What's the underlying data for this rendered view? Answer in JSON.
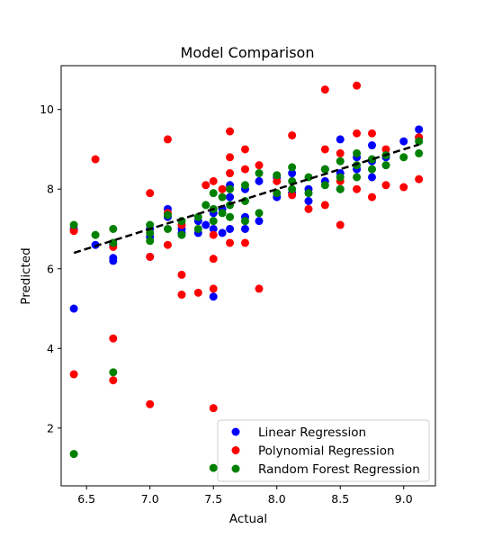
{
  "chart_data": {
    "type": "scatter",
    "title": "Model Comparison",
    "xlabel": "Actual",
    "ylabel": "Predicted",
    "xlim": [
      6.3,
      9.25
    ],
    "ylim": [
      0.55,
      11.1
    ],
    "xticks": [
      6.5,
      7.0,
      7.5,
      8.0,
      8.5,
      9.0
    ],
    "yticks": [
      2,
      4,
      6,
      8,
      10
    ],
    "grid": false,
    "legend_position": "lower right",
    "series": [
      {
        "name": "Linear Regression",
        "color": "#0000ff",
        "points": [
          [
            6.4,
            5.0
          ],
          [
            6.4,
            7.0
          ],
          [
            6.57,
            6.6
          ],
          [
            6.71,
            6.2
          ],
          [
            6.71,
            6.27
          ],
          [
            6.71,
            6.6
          ],
          [
            7.0,
            6.3
          ],
          [
            7.0,
            6.8
          ],
          [
            7.0,
            7.0
          ],
          [
            7.14,
            7.5
          ],
          [
            7.14,
            7.3
          ],
          [
            7.25,
            7.0
          ],
          [
            7.25,
            6.9
          ],
          [
            7.38,
            7.2
          ],
          [
            7.38,
            6.9
          ],
          [
            7.44,
            7.1
          ],
          [
            7.5,
            5.3
          ],
          [
            7.5,
            7.0
          ],
          [
            7.5,
            7.4
          ],
          [
            7.57,
            6.9
          ],
          [
            7.57,
            7.5
          ],
          [
            7.63,
            7.0
          ],
          [
            7.63,
            8.1
          ],
          [
            7.63,
            7.8
          ],
          [
            7.75,
            7.3
          ],
          [
            7.75,
            8.0
          ],
          [
            7.75,
            7.0
          ],
          [
            7.86,
            7.2
          ],
          [
            7.86,
            8.2
          ],
          [
            8.0,
            7.8
          ],
          [
            8.0,
            8.3
          ],
          [
            8.12,
            7.9
          ],
          [
            8.12,
            8.4
          ],
          [
            8.25,
            7.7
          ],
          [
            8.25,
            8.0
          ],
          [
            8.38,
            8.2
          ],
          [
            8.38,
            8.5
          ],
          [
            8.5,
            8.0
          ],
          [
            8.5,
            8.4
          ],
          [
            8.5,
            9.25
          ],
          [
            8.63,
            8.5
          ],
          [
            8.63,
            8.8
          ],
          [
            8.75,
            8.3
          ],
          [
            8.75,
            9.1
          ],
          [
            8.75,
            8.7
          ],
          [
            8.86,
            8.8
          ],
          [
            9.0,
            9.2
          ],
          [
            9.12,
            9.5
          ],
          [
            9.12,
            9.3
          ]
        ]
      },
      {
        "name": "Polynomial Regression",
        "color": "#ff0000",
        "points": [
          [
            6.4,
            3.35
          ],
          [
            6.4,
            6.95
          ],
          [
            6.57,
            8.75
          ],
          [
            6.71,
            4.25
          ],
          [
            6.71,
            3.2
          ],
          [
            6.71,
            6.55
          ],
          [
            7.0,
            2.6
          ],
          [
            7.0,
            7.9
          ],
          [
            7.0,
            6.3
          ],
          [
            7.14,
            9.25
          ],
          [
            7.14,
            6.6
          ],
          [
            7.14,
            7.4
          ],
          [
            7.25,
            5.85
          ],
          [
            7.25,
            5.35
          ],
          [
            7.25,
            7.1
          ],
          [
            7.38,
            5.4
          ],
          [
            7.44,
            8.1
          ],
          [
            7.5,
            2.5
          ],
          [
            7.5,
            5.5
          ],
          [
            7.5,
            6.25
          ],
          [
            7.5,
            8.2
          ],
          [
            7.5,
            6.85
          ],
          [
            7.57,
            8.0
          ],
          [
            7.63,
            9.45
          ],
          [
            7.63,
            8.8
          ],
          [
            7.63,
            8.4
          ],
          [
            7.63,
            6.65
          ],
          [
            7.75,
            9.0
          ],
          [
            7.75,
            8.5
          ],
          [
            7.75,
            6.65
          ],
          [
            7.86,
            5.5
          ],
          [
            7.86,
            8.6
          ],
          [
            8.0,
            8.2
          ],
          [
            8.12,
            9.35
          ],
          [
            8.12,
            7.85
          ],
          [
            8.25,
            7.5
          ],
          [
            8.38,
            10.5
          ],
          [
            8.38,
            9.0
          ],
          [
            8.38,
            7.6
          ],
          [
            8.5,
            7.1
          ],
          [
            8.5,
            8.9
          ],
          [
            8.5,
            8.2
          ],
          [
            8.63,
            10.6
          ],
          [
            8.63,
            9.4
          ],
          [
            8.63,
            8.0
          ],
          [
            8.75,
            9.4
          ],
          [
            8.75,
            7.8
          ],
          [
            8.86,
            8.1
          ],
          [
            8.86,
            9.0
          ],
          [
            9.0,
            8.05
          ],
          [
            9.12,
            8.25
          ],
          [
            9.12,
            9.3
          ]
        ]
      },
      {
        "name": "Random Forest Regression",
        "color": "#008000",
        "points": [
          [
            6.4,
            1.35
          ],
          [
            6.4,
            7.1
          ],
          [
            6.57,
            6.85
          ],
          [
            6.71,
            3.4
          ],
          [
            6.71,
            7.0
          ],
          [
            6.71,
            6.65
          ],
          [
            7.0,
            7.1
          ],
          [
            7.0,
            6.9
          ],
          [
            7.0,
            6.7
          ],
          [
            7.14,
            7.35
          ],
          [
            7.14,
            7.0
          ],
          [
            7.25,
            7.2
          ],
          [
            7.25,
            6.85
          ],
          [
            7.38,
            7.3
          ],
          [
            7.38,
            7.0
          ],
          [
            7.44,
            7.6
          ],
          [
            7.5,
            1.0
          ],
          [
            7.5,
            7.9
          ],
          [
            7.5,
            7.5
          ],
          [
            7.5,
            7.2
          ],
          [
            7.57,
            7.4
          ],
          [
            7.57,
            7.8
          ],
          [
            7.63,
            8.0
          ],
          [
            7.63,
            7.6
          ],
          [
            7.63,
            7.3
          ],
          [
            7.75,
            8.1
          ],
          [
            7.75,
            7.7
          ],
          [
            7.75,
            7.2
          ],
          [
            7.86,
            7.4
          ],
          [
            7.86,
            8.4
          ],
          [
            8.0,
            8.35
          ],
          [
            8.0,
            7.9
          ],
          [
            8.12,
            8.55
          ],
          [
            8.12,
            8.2
          ],
          [
            8.12,
            8.0
          ],
          [
            8.25,
            8.3
          ],
          [
            8.25,
            7.9
          ],
          [
            8.38,
            8.5
          ],
          [
            8.38,
            8.1
          ],
          [
            8.5,
            8.7
          ],
          [
            8.5,
            8.3
          ],
          [
            8.5,
            8.0
          ],
          [
            8.63,
            8.6
          ],
          [
            8.63,
            8.3
          ],
          [
            8.63,
            8.9
          ],
          [
            8.75,
            8.75
          ],
          [
            8.75,
            8.5
          ],
          [
            8.86,
            8.6
          ],
          [
            8.86,
            8.85
          ],
          [
            9.0,
            8.8
          ],
          [
            9.12,
            8.9
          ],
          [
            9.12,
            9.2
          ]
        ]
      }
    ],
    "reference_line": {
      "style": "dashed",
      "color": "#000000",
      "from": [
        6.4,
        6.4
      ],
      "to": [
        9.12,
        9.12
      ]
    }
  }
}
